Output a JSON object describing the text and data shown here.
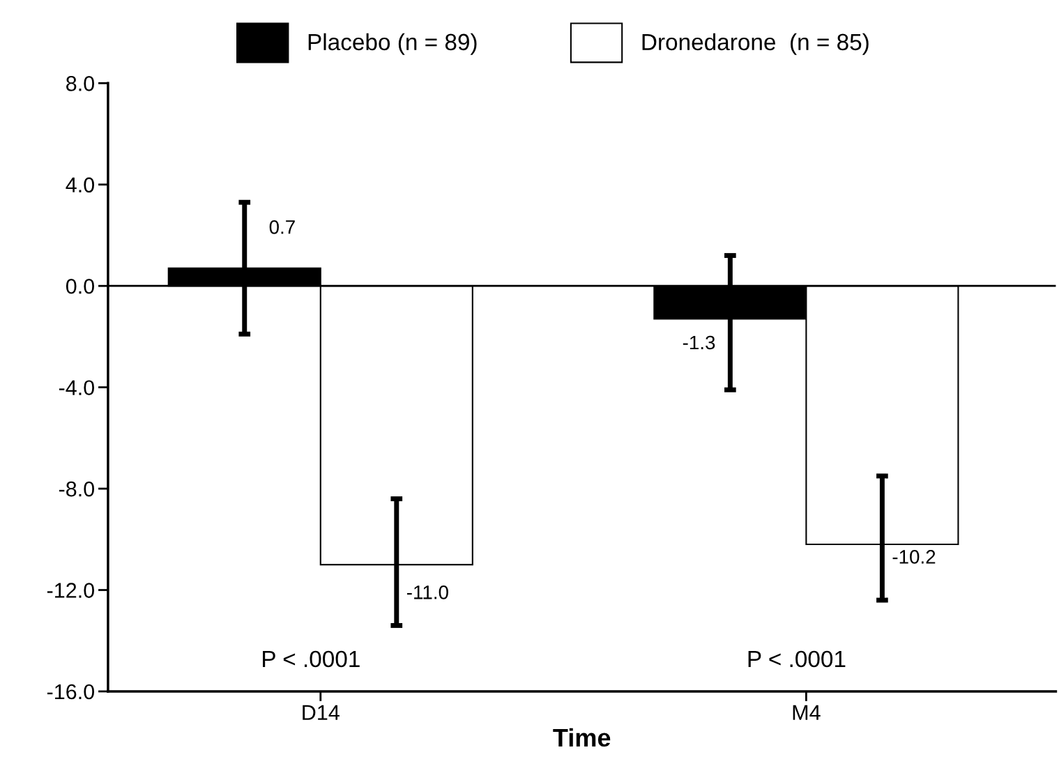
{
  "chart_data": {
    "type": "bar",
    "xlabel": "Time",
    "categories": [
      "D14",
      "M4"
    ],
    "series": [
      {
        "name": "Placebo (n = 89)",
        "color": "#000000",
        "values": [
          0.7,
          -1.3
        ],
        "errors": [
          [
            -1.9,
            3.3
          ],
          [
            -4.1,
            1.2
          ]
        ],
        "value_labels": [
          "0.7",
          "-1.3"
        ]
      },
      {
        "name": "Dronedarone  (n = 85)",
        "color": "#ffffff",
        "values": [
          -11.0,
          -10.2
        ],
        "errors": [
          [
            -13.4,
            -8.4
          ],
          [
            -12.4,
            -7.5
          ]
        ],
        "value_labels": [
          "-11.0",
          "-10.2"
        ]
      }
    ],
    "ylim": [
      -16,
      8
    ],
    "yticks": [
      {
        "value": 8,
        "label": "8.0"
      },
      {
        "value": 4,
        "label": "4.0"
      },
      {
        "value": 0,
        "label": "0.0"
      },
      {
        "value": -4,
        "label": "-4.0"
      },
      {
        "value": -8,
        "label": "-8.0"
      },
      {
        "value": -12,
        "label": "-12.0"
      },
      {
        "value": -16,
        "label": "-16.0"
      }
    ],
    "ref_lines": [
      {
        "axis": "y",
        "value": 0,
        "color": "#000000"
      }
    ],
    "annotations": [
      "P < .0001",
      "P < .0001"
    ],
    "legend": "top",
    "grid": false
  }
}
